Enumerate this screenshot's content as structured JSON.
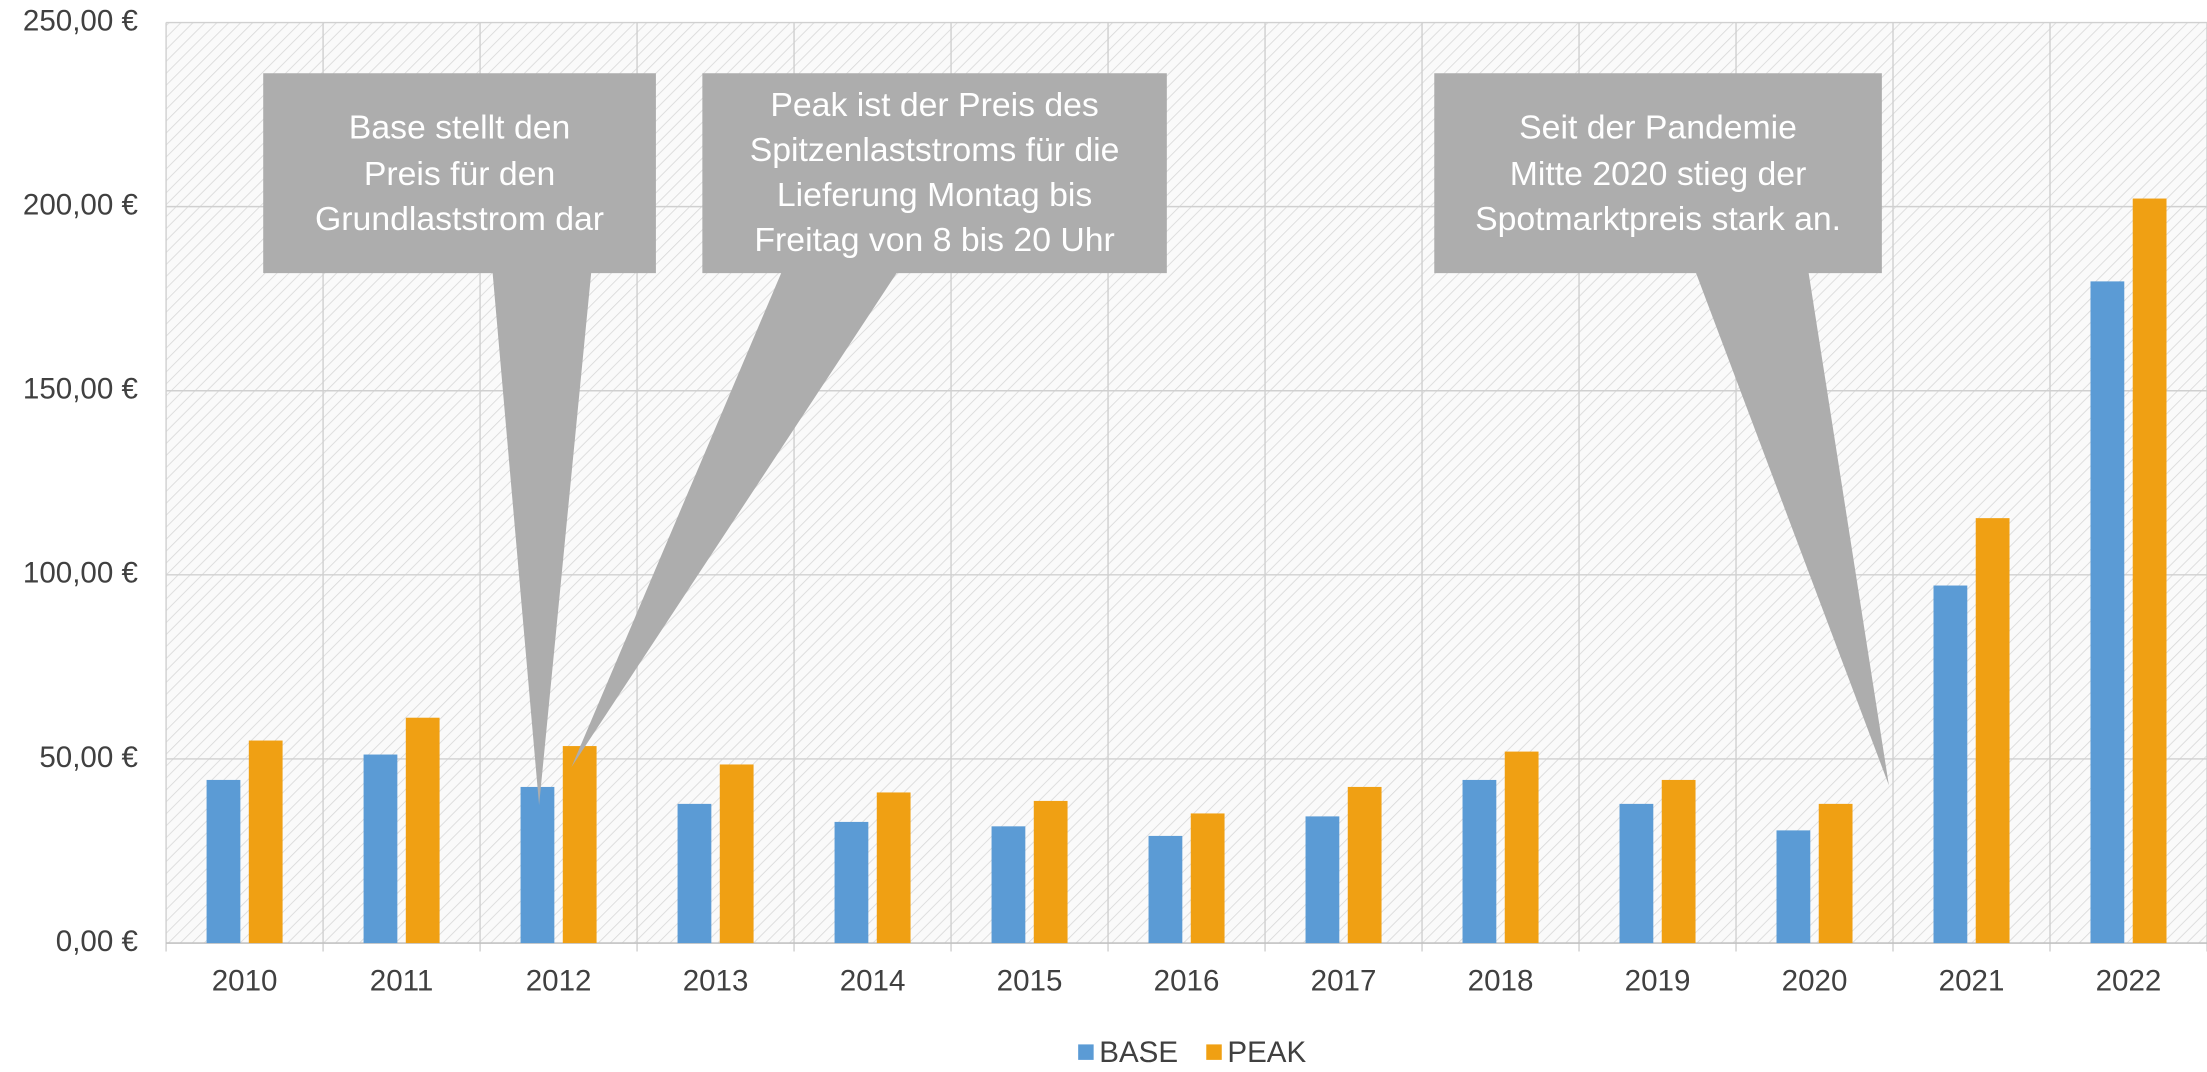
{
  "chart_data": {
    "type": "bar",
    "categories": [
      "2010",
      "2011",
      "2012",
      "2013",
      "2014",
      "2015",
      "2016",
      "2017",
      "2018",
      "2019",
      "2020",
      "2021",
      "2022"
    ],
    "series": [
      {
        "name": "BASE",
        "color": "#5b9bd5",
        "values": [
          44.3,
          51.2,
          42.4,
          37.8,
          32.9,
          31.7,
          29.1,
          34.4,
          44.3,
          37.8,
          30.6,
          97.1,
          179.7
        ]
      },
      {
        "name": "PEAK",
        "color": "#f0a013",
        "values": [
          55.0,
          61.2,
          53.5,
          48.5,
          40.9,
          38.6,
          35.2,
          42.4,
          52.0,
          44.3,
          37.8,
          115.4,
          202.2
        ]
      }
    ],
    "ylim": [
      0,
      250
    ],
    "yticks": [
      {
        "value": 0,
        "label": "0,00 €"
      },
      {
        "value": 50,
        "label": "50,00 €"
      },
      {
        "value": 100,
        "label": "100,00 €"
      },
      {
        "value": 150,
        "label": "150,00 €"
      },
      {
        "value": 200,
        "label": "200,00 €"
      },
      {
        "value": 250,
        "label": "250,00 €"
      }
    ],
    "grid": true,
    "legend": "bottom",
    "annotations": [
      {
        "lines": [
          "Base stellt den",
          "Preis für den",
          "Grundlaststrom dar"
        ]
      },
      {
        "lines": [
          "Peak ist der Preis des",
          "Spitzenlaststroms für die",
          "Lieferung Montag bis",
          "Freitag von 8 bis 20 Uhr"
        ]
      },
      {
        "lines": [
          "Seit der Pandemie",
          "Mitte 2020 stieg der",
          "Spotmarktpreis stark an."
        ]
      }
    ]
  }
}
